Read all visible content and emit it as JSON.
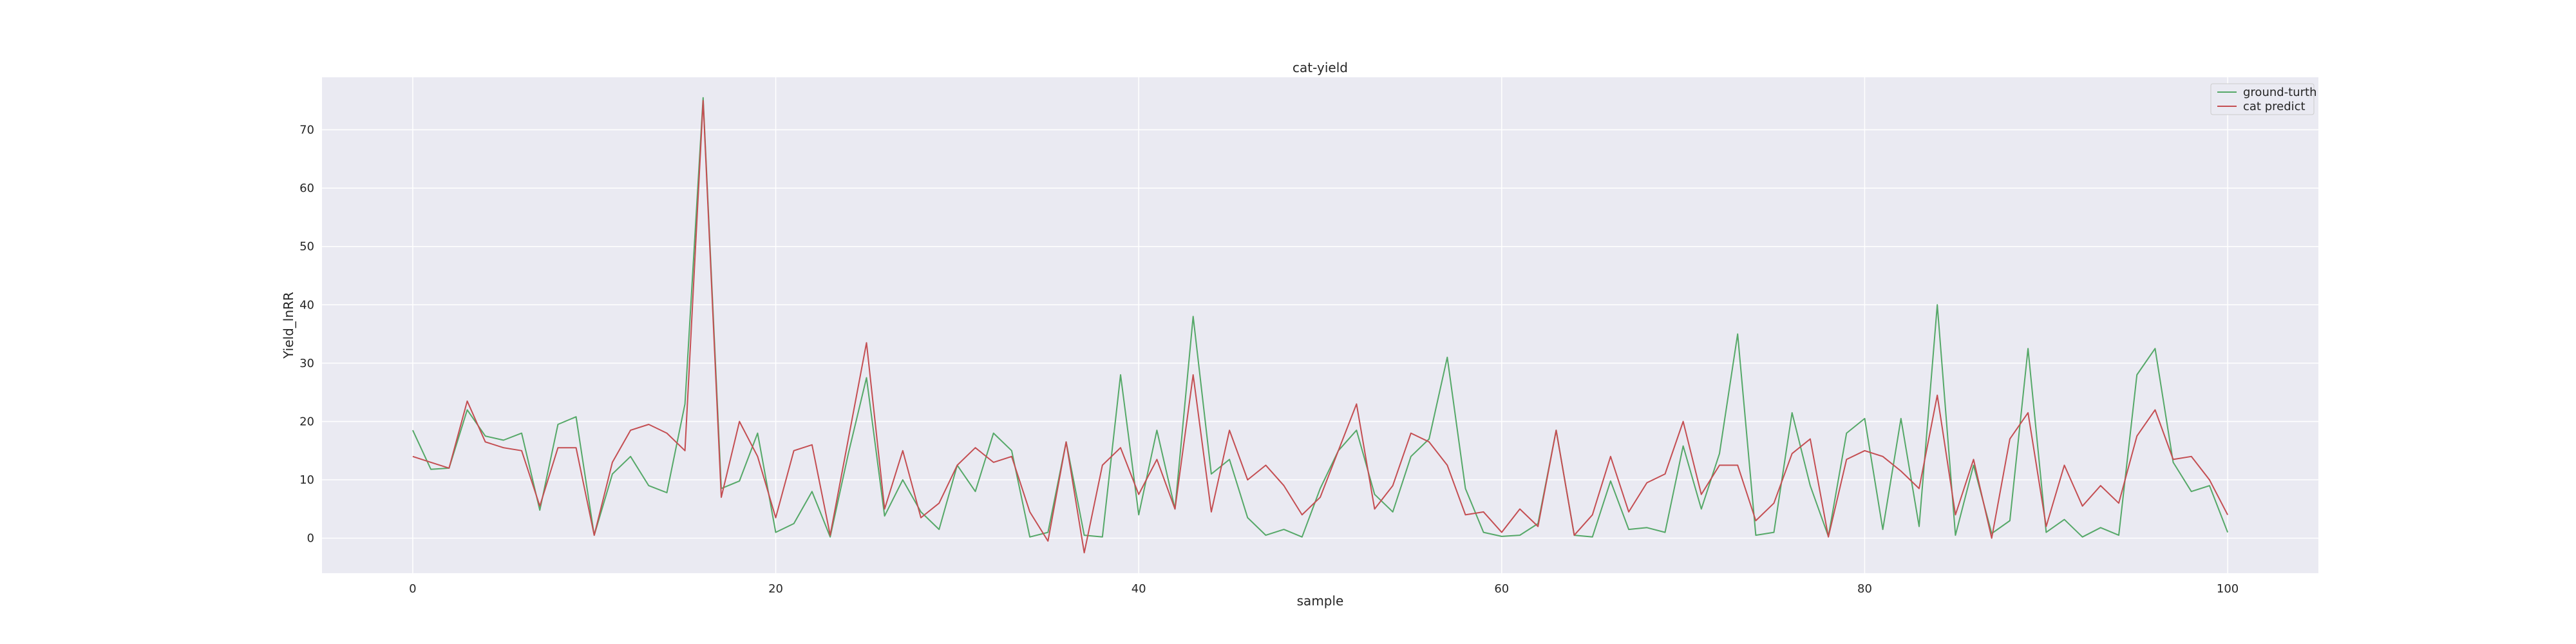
{
  "chart_data": {
    "type": "line",
    "title": "cat-yield",
    "xlabel": "sample",
    "ylabel": "Yield_lnRR",
    "xlim": [
      -5,
      105
    ],
    "ylim": [
      -6,
      79
    ],
    "xticks": [
      0,
      20,
      40,
      60,
      80,
      100
    ],
    "yticks": [
      0,
      10,
      20,
      30,
      40,
      50,
      60,
      70
    ],
    "grid": true,
    "legend_position": "top-right",
    "background_color": "#eaeaf2",
    "x": [
      0,
      1,
      2,
      3,
      4,
      5,
      6,
      7,
      8,
      9,
      10,
      11,
      12,
      13,
      14,
      15,
      16,
      17,
      18,
      19,
      20,
      21,
      22,
      23,
      24,
      25,
      26,
      27,
      28,
      29,
      30,
      31,
      32,
      33,
      34,
      35,
      36,
      37,
      38,
      39,
      40,
      41,
      42,
      43,
      44,
      45,
      46,
      47,
      48,
      49,
      50,
      51,
      52,
      53,
      54,
      55,
      56,
      57,
      58,
      59,
      60,
      61,
      62,
      63,
      64,
      65,
      66,
      67,
      68,
      69,
      70,
      71,
      72,
      73,
      74,
      75,
      76,
      77,
      78,
      79,
      80,
      81,
      82,
      83,
      84,
      85,
      86,
      87,
      88,
      89,
      90,
      91,
      92,
      93,
      94,
      95,
      96,
      97,
      98,
      99,
      100
    ],
    "series": [
      {
        "name": "ground-turth",
        "color": "#55a868",
        "values": [
          18.5,
          11.8,
          12.0,
          22.0,
          17.5,
          16.8,
          18.0,
          4.8,
          19.5,
          20.8,
          0.5,
          11.0,
          14.0,
          9.0,
          7.8,
          23.0,
          75.5,
          8.5,
          9.8,
          18.0,
          1.0,
          2.5,
          8.0,
          0.2,
          14.5,
          27.5,
          3.8,
          10.0,
          4.5,
          1.5,
          12.5,
          8.0,
          18.0,
          15.0,
          0.2,
          1.0,
          16.5,
          0.5,
          0.2,
          28.0,
          4.0,
          18.5,
          5.0,
          38.0,
          11.0,
          13.5,
          3.5,
          0.5,
          1.5,
          0.2,
          8.5,
          15.0,
          18.5,
          7.5,
          4.5,
          14.0,
          17.0,
          31.0,
          8.5,
          1.0,
          0.3,
          0.5,
          2.5,
          18.5,
          0.5,
          0.2,
          9.8,
          1.5,
          1.8,
          1.0,
          15.8,
          5.0,
          14.5,
          35.0,
          0.5,
          1.0,
          21.5,
          9.0,
          0.3,
          18.0,
          20.5,
          1.5,
          20.5,
          2.0,
          40.0,
          0.5,
          12.5,
          0.8,
          3.0,
          32.5,
          1.0,
          3.2,
          0.2,
          1.8,
          0.5,
          28.0,
          32.5,
          13.0,
          8.0,
          9.0,
          1.0
        ]
      },
      {
        "name": "cat predict",
        "color": "#c44e52",
        "values": [
          14.0,
          13.0,
          12.0,
          23.5,
          16.5,
          15.5,
          15.0,
          5.5,
          15.5,
          15.5,
          0.5,
          13.0,
          18.5,
          19.5,
          18.0,
          15.0,
          75.0,
          7.0,
          20.0,
          14.0,
          3.5,
          15.0,
          16.0,
          0.5,
          17.0,
          33.5,
          5.0,
          15.0,
          3.5,
          6.0,
          12.5,
          15.5,
          13.0,
          14.0,
          4.5,
          -0.5,
          16.5,
          -2.5,
          12.5,
          15.5,
          7.5,
          13.5,
          5.0,
          28.0,
          4.5,
          18.5,
          10.0,
          12.5,
          9.0,
          4.0,
          7.0,
          15.0,
          23.0,
          5.0,
          9.0,
          18.0,
          16.5,
          12.5,
          4.0,
          4.5,
          1.0,
          5.0,
          2.0,
          18.5,
          0.5,
          4.0,
          14.0,
          4.5,
          9.5,
          11.0,
          20.0,
          7.5,
          12.5,
          12.5,
          3.0,
          6.0,
          14.5,
          17.0,
          0.2,
          13.5,
          15.0,
          14.0,
          11.5,
          8.5,
          24.5,
          4.0,
          13.5,
          0.0,
          17.0,
          21.5,
          2.0,
          12.5,
          5.5,
          9.0,
          6.0,
          17.5,
          22.0,
          13.5,
          14.0,
          10.0,
          4.0
        ]
      }
    ]
  }
}
